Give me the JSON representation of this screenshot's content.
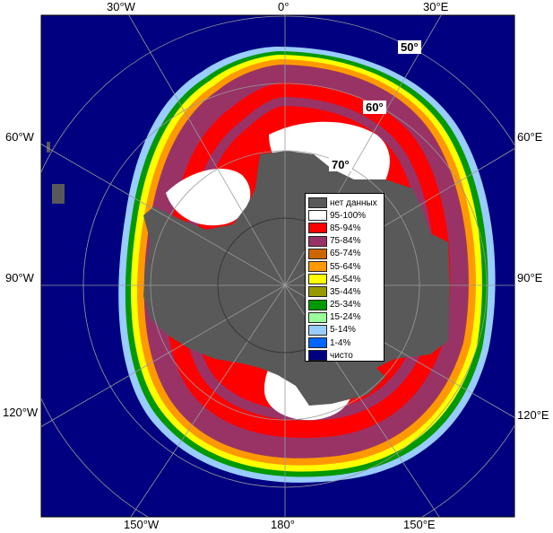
{
  "map": {
    "longitude_labels": {
      "top_left": "30°W",
      "top_center": "0°",
      "top_right": "30°E",
      "left_upper": "60°W",
      "left_middle": "90°W",
      "left_lower": "120°W",
      "right_upper": "60°E",
      "right_middle": "90°E",
      "right_lower": "120°E",
      "bottom_left": "150°W",
      "bottom_center": "180°",
      "bottom_right": "150°E"
    },
    "latitude_labels": {
      "lat50": "50°",
      "lat60": "60°",
      "lat70": "70°"
    },
    "colors": {
      "ocean": "#000080",
      "frame_gray": "#595959",
      "no_data": "#595959",
      "c95": "#ffffff",
      "c85": "#ff0000",
      "c75": "#993366",
      "c65": "#cc6600",
      "c55": "#ff9900",
      "c45": "#ffff00",
      "c35": "#999900",
      "c25": "#009900",
      "c15": "#99ff99",
      "c5": "#99ccff",
      "c1": "#0066ff"
    }
  },
  "legend": {
    "items": [
      {
        "label": "нет данных",
        "color": "#595959"
      },
      {
        "label": "95-100%",
        "color": "#ffffff"
      },
      {
        "label": "85-94%",
        "color": "#ff0000"
      },
      {
        "label": "75-84%",
        "color": "#993366"
      },
      {
        "label": "65-74%",
        "color": "#cc6600"
      },
      {
        "label": "55-64%",
        "color": "#ff9900"
      },
      {
        "label": "45-54%",
        "color": "#ffff00"
      },
      {
        "label": "35-44%",
        "color": "#999900"
      },
      {
        "label": "25-34%",
        "color": "#009900"
      },
      {
        "label": "15-24%",
        "color": "#99ff99"
      },
      {
        "label": "5-14%",
        "color": "#99ccff"
      },
      {
        "label": "1-4%",
        "color": "#0066ff"
      },
      {
        "label": "чисто",
        "color": "#000080"
      }
    ]
  }
}
